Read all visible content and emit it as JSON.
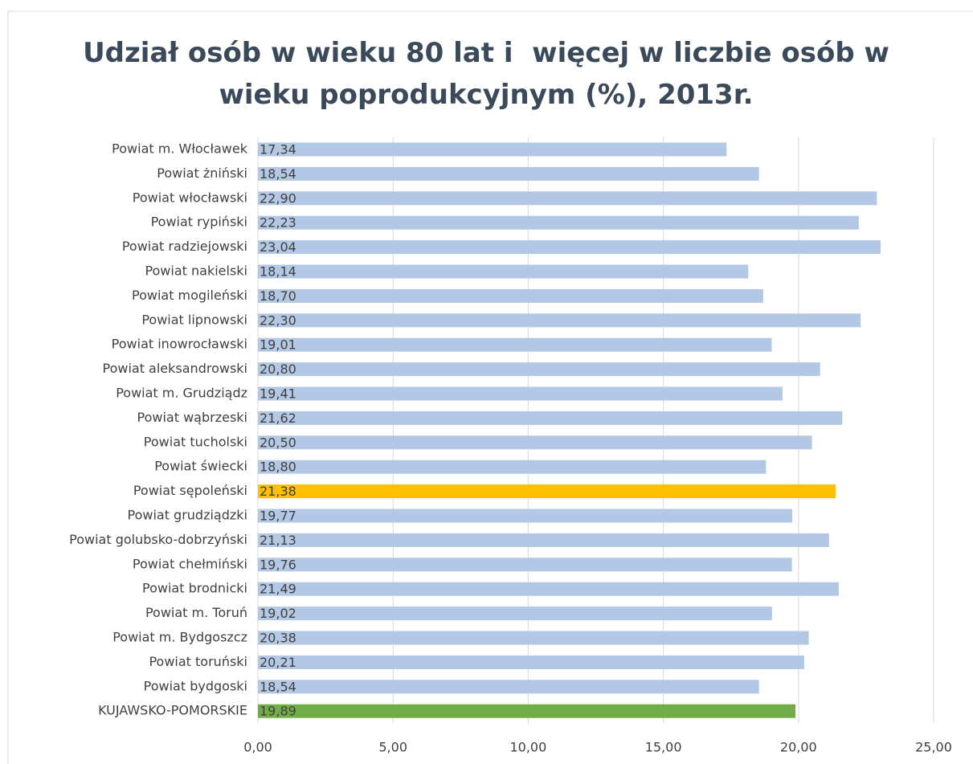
{
  "chart_data": {
    "type": "barh",
    "title": "Udział osób w wieku 80 lat i  więcej w liczbie osób w wieku poprodukcyjnym (%), 2013r.",
    "categories": [
      "Powiat m. Włocławek",
      "Powiat żniński",
      "Powiat włocławski",
      "Powiat rypiński",
      "Powiat radziejowski",
      "Powiat nakielski",
      "Powiat mogileński",
      "Powiat lipnowski",
      "Powiat inowrocławski",
      "Powiat aleksandrowski",
      "Powiat m. Grudziądz",
      "Powiat wąbrzeski",
      "Powiat tucholski",
      "Powiat świecki",
      "Powiat sępoleński",
      "Powiat grudziądzki",
      "Powiat golubsko-dobrzyński",
      "Powiat chełmiński",
      "Powiat brodnicki",
      "Powiat m. Toruń",
      "Powiat m. Bydgoszcz",
      "Powiat toruński",
      "Powiat bydgoski",
      "KUJAWSKO-POMORSKIE"
    ],
    "values": [
      17.34,
      18.54,
      22.9,
      22.23,
      23.04,
      18.14,
      18.7,
      22.3,
      19.01,
      20.8,
      19.41,
      21.62,
      20.5,
      18.8,
      21.38,
      19.77,
      21.13,
      19.76,
      21.49,
      19.02,
      20.38,
      20.21,
      18.54,
      19.89
    ],
    "value_labels": [
      "17,34",
      "18,54",
      "22,90",
      "22,23",
      "23,04",
      "18,14",
      "18,70",
      "22,30",
      "19,01",
      "20,80",
      "19,41",
      "21,62",
      "20,50",
      "18,80",
      "21,38",
      "19,77",
      "21,13",
      "19,76",
      "21,49",
      "19,02",
      "20,38",
      "20,21",
      "18,54",
      "19,89"
    ],
    "colors": [
      "#b3c8e4",
      "#b3c8e4",
      "#b3c8e4",
      "#b3c8e4",
      "#b3c8e4",
      "#b3c8e4",
      "#b3c8e4",
      "#b3c8e4",
      "#b3c8e4",
      "#b3c8e4",
      "#b3c8e4",
      "#b3c8e4",
      "#b3c8e4",
      "#b3c8e4",
      "#ffc000",
      "#b3c8e4",
      "#b3c8e4",
      "#b3c8e4",
      "#b3c8e4",
      "#b3c8e4",
      "#b3c8e4",
      "#b3c8e4",
      "#b3c8e4",
      "#70ad47"
    ],
    "xlim": [
      0,
      25
    ],
    "xticks": [
      {
        "value": 0,
        "label": "0,00"
      },
      {
        "value": 5,
        "label": "5,00"
      },
      {
        "value": 10,
        "label": "10,00"
      },
      {
        "value": 15,
        "label": "15,00"
      },
      {
        "value": 20,
        "label": "20,00"
      },
      {
        "value": 25,
        "label": "25,00"
      }
    ],
    "grid": true
  }
}
